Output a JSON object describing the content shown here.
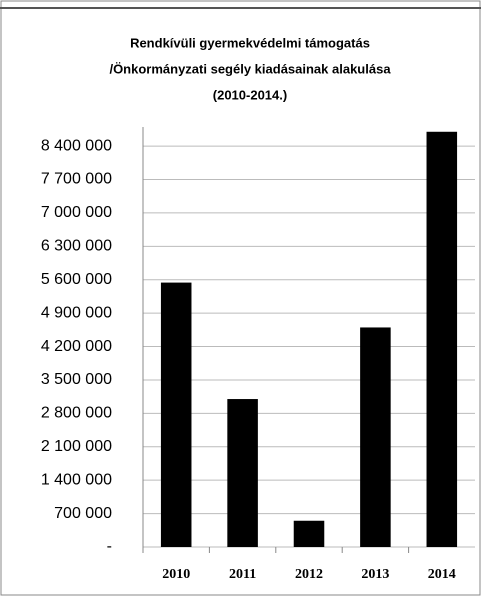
{
  "chart_data": {
    "type": "bar",
    "title": [
      "Rendkívüli gyermekvédelmi támogatás",
      "/Önkormányzati segély kiadásainak alakulása",
      "(2010-2014.)"
    ],
    "categories": [
      "2010",
      "2011",
      "2012",
      "2013",
      "2014"
    ],
    "values": [
      5540000,
      3100000,
      550000,
      4600000,
      8700000
    ],
    "color": "#000000",
    "ylim": [
      0,
      8800000
    ],
    "yticks": [
      {
        "value": 0,
        "label": "-"
      },
      {
        "value": 700000,
        "label": "700 000"
      },
      {
        "value": 1400000,
        "label": "1 400 000"
      },
      {
        "value": 2100000,
        "label": "2 100 000"
      },
      {
        "value": 2800000,
        "label": "2 800 000"
      },
      {
        "value": 3500000,
        "label": "3 500 000"
      },
      {
        "value": 4200000,
        "label": "4 200 000"
      },
      {
        "value": 4900000,
        "label": "4 900 000"
      },
      {
        "value": 5600000,
        "label": "5 600 000"
      },
      {
        "value": 6300000,
        "label": "6 300 000"
      },
      {
        "value": 7000000,
        "label": "7 000 000"
      },
      {
        "value": 7700000,
        "label": "7 700 000"
      },
      {
        "value": 8400000,
        "label": "8 400 000"
      }
    ],
    "grid": true
  }
}
